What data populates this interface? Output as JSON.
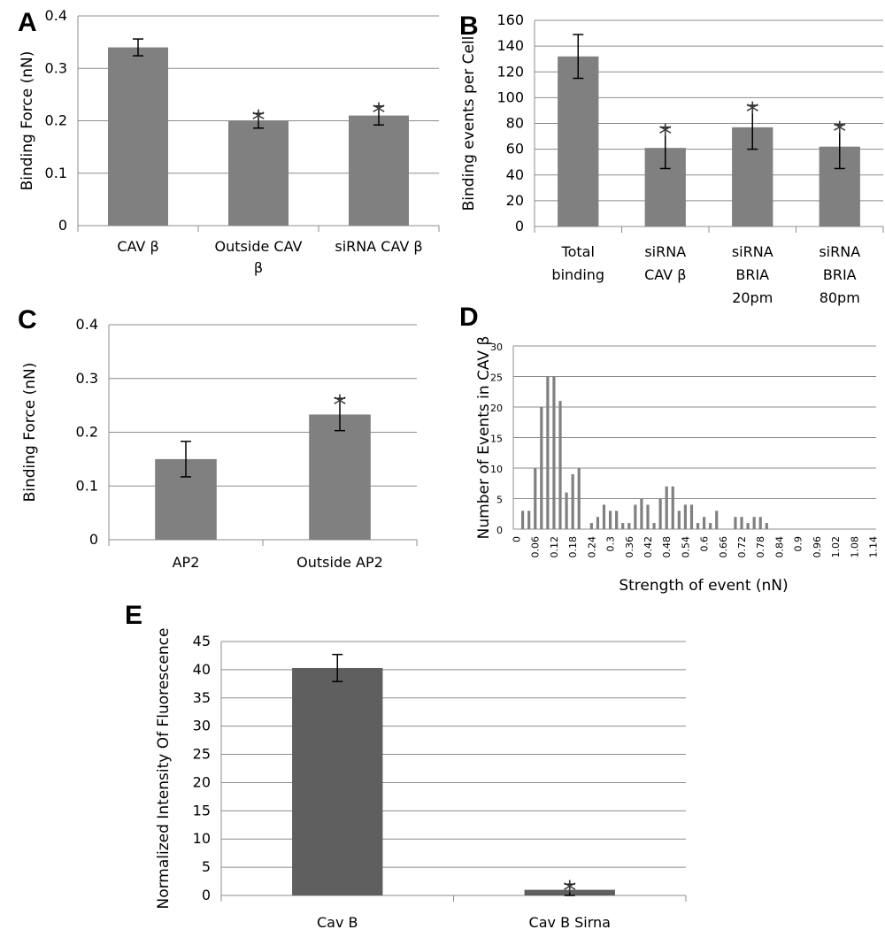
{
  "chart_data": [
    {
      "panel": "A",
      "type": "bar",
      "ylabel": "Binding Force (nN)",
      "ylim": [
        0,
        0.4
      ],
      "yticks": [
        "0",
        "0.1",
        "0.2",
        "0.3",
        "0.4"
      ],
      "categories": [
        [
          "CAV β"
        ],
        [
          "Outside CAV",
          "β"
        ],
        [
          "siRNA CAV β"
        ]
      ],
      "values": [
        0.34,
        0.2,
        0.21
      ],
      "errors": [
        0.016,
        0.014,
        0.018
      ],
      "significant": [
        false,
        true,
        true
      ],
      "bar_color": "#808080",
      "grid": true
    },
    {
      "panel": "B",
      "type": "bar",
      "ylabel": "Binding events per Cell",
      "ylim": [
        0,
        160
      ],
      "yticks": [
        "0",
        "20",
        "40",
        "60",
        "80",
        "100",
        "120",
        "140",
        "160"
      ],
      "categories": [
        [
          "Total",
          "binding"
        ],
        [
          "siRNA",
          "CAV β"
        ],
        [
          "siRNA",
          "BRIA",
          "20pm"
        ],
        [
          "siRNA",
          "BRIA",
          "80pm"
        ]
      ],
      "values": [
        132,
        61,
        77,
        62
      ],
      "errors": [
        17,
        16,
        17,
        17
      ],
      "significant": [
        false,
        true,
        true,
        true
      ],
      "bar_color": "#808080",
      "grid": true
    },
    {
      "panel": "C",
      "type": "bar",
      "ylabel": "Binding Force (nN)",
      "ylim": [
        0,
        0.4
      ],
      "yticks": [
        "0",
        "0.1",
        "0.2",
        "0.3",
        "0.4"
      ],
      "categories": [
        [
          "AP2"
        ],
        [
          "Outside AP2"
        ]
      ],
      "values": [
        0.15,
        0.233
      ],
      "errors": [
        0.033,
        0.03
      ],
      "significant": [
        false,
        true
      ],
      "bar_color": "#808080",
      "grid": true
    },
    {
      "panel": "D",
      "type": "bar",
      "ylabel": "Number of Events in CAV β",
      "xlabel": "Strength of event (nN)",
      "ylim": [
        0,
        30
      ],
      "yticks": [
        "0",
        "5",
        "10",
        "15",
        "20",
        "25",
        "30"
      ],
      "xticks": [
        "0",
        "0.06",
        "0.12",
        "0.18",
        "0.24",
        "0.3",
        "0.36",
        "0.42",
        "0.48",
        "0.54",
        "0.6",
        "0.66",
        "0.72",
        "0.78",
        "0.84",
        "0.9",
        "0.96",
        "1.02",
        "1.08",
        "1.14"
      ],
      "x": [
        0.0,
        0.02,
        0.04,
        0.06,
        0.08,
        0.1,
        0.12,
        0.14,
        0.16,
        0.18,
        0.2,
        0.22,
        0.24,
        0.26,
        0.28,
        0.3,
        0.32,
        0.34,
        0.36,
        0.38,
        0.4,
        0.42,
        0.44,
        0.46,
        0.48,
        0.5,
        0.52,
        0.54,
        0.56,
        0.58,
        0.6,
        0.62,
        0.64,
        0.66,
        0.68,
        0.7,
        0.72,
        0.74,
        0.76,
        0.78,
        0.8,
        0.82,
        0.84,
        0.86,
        0.88,
        0.9,
        0.92,
        0.94,
        0.96,
        0.98,
        1.0,
        1.02,
        1.04,
        1.06,
        1.08,
        1.1,
        1.12,
        1.14
      ],
      "values": [
        0,
        3,
        3,
        10,
        20,
        25,
        25,
        21,
        6,
        9,
        10,
        0,
        1,
        2,
        4,
        3,
        3,
        1,
        1,
        4,
        5,
        4,
        1,
        5,
        7,
        7,
        3,
        4,
        4,
        1,
        2,
        1,
        3,
        0,
        0,
        2,
        2,
        1,
        2,
        2,
        1,
        0,
        0,
        0,
        0,
        0,
        0,
        0,
        0,
        0,
        0,
        0,
        0,
        0,
        0,
        0,
        0,
        0
      ],
      "bar_color": "#808080",
      "grid": true
    },
    {
      "panel": "E",
      "type": "bar",
      "ylabel": "Normalized Intensity Of Fluorescence",
      "ylim": [
        0,
        45
      ],
      "yticks": [
        "0",
        "5",
        "10",
        "15",
        "20",
        "25",
        "30",
        "35",
        "40",
        "45"
      ],
      "categories": [
        [
          "Cav B"
        ],
        [
          "Cav B Sirna"
        ]
      ],
      "values": [
        40.3,
        1.0
      ],
      "errors": [
        2.4,
        1.0
      ],
      "significant": [
        false,
        true
      ],
      "bar_color": "#5f5f5f",
      "grid": true
    }
  ],
  "star_symbol": "*"
}
